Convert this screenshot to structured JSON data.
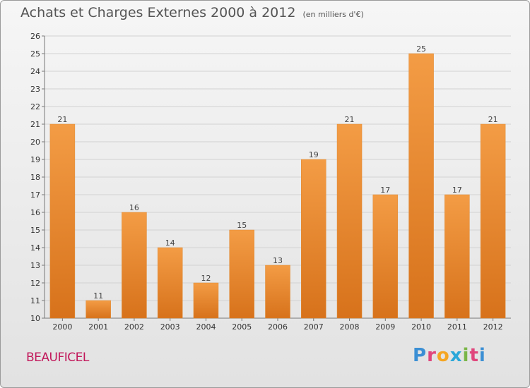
{
  "header": {
    "title": "Achats et Charges Externes 2000 à 2012",
    "subtitle": "(en milliers d'€)"
  },
  "footer": {
    "commune": "BEAUFICEL",
    "logo": {
      "letters": [
        "P",
        "r",
        "o",
        "x",
        "i",
        "t",
        "i"
      ],
      "colors": [
        "#3b8fd4",
        "#e0467c",
        "#f5a623",
        "#2aa7d9",
        "#7ab648",
        "#e0467c",
        "#3b8fd4"
      ]
    }
  },
  "chart_data": {
    "type": "bar",
    "title": "Achats et Charges Externes 2000 à 2012",
    "subtitle": "(en milliers d'€)",
    "categories": [
      "2000",
      "2001",
      "2002",
      "2003",
      "2004",
      "2005",
      "2006",
      "2007",
      "2008",
      "2009",
      "2010",
      "2011",
      "2012"
    ],
    "values": [
      21,
      11,
      16,
      14,
      12,
      15,
      13,
      19,
      21,
      17,
      25,
      17,
      21
    ],
    "ylim": [
      10,
      26
    ],
    "yticks": [
      10,
      11,
      12,
      13,
      14,
      15,
      16,
      17,
      18,
      19,
      20,
      21,
      22,
      23,
      24,
      25,
      26
    ],
    "grid": true,
    "bar_color": "#f39c45",
    "bar_color_dark": "#d7721b"
  }
}
